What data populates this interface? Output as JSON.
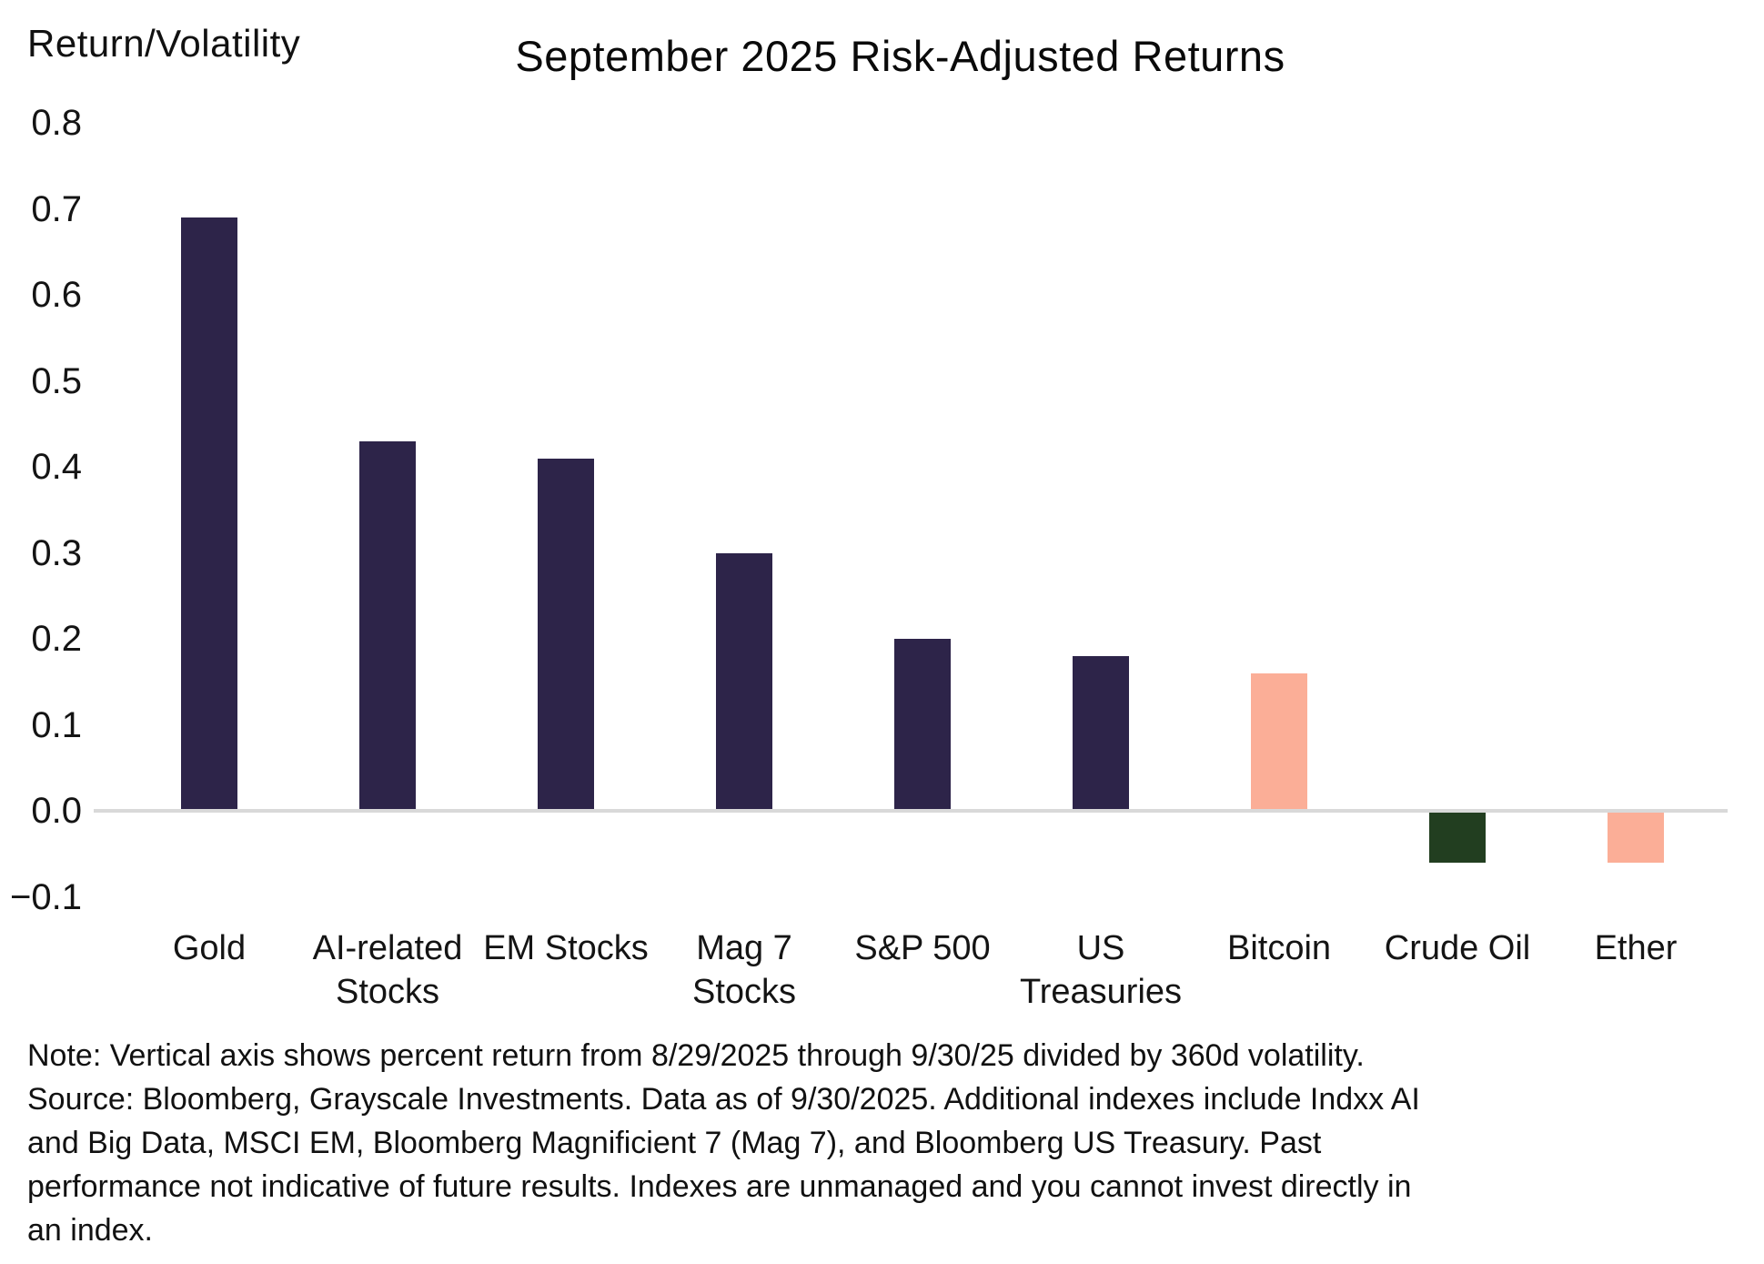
{
  "colors": {
    "bar_purple": "#2D2449",
    "bar_salmon": "#FBAE97",
    "bar_green": "#223E20",
    "axis_gray": "#D9D9D9",
    "background": "#FFFFFF"
  },
  "chart_data": {
    "type": "bar",
    "title": "September 2025 Risk-Adjusted Returns",
    "ylabel": "Return/Volatility",
    "xlabel": "",
    "categories": [
      "Gold",
      "AI-related Stocks",
      "EM Stocks",
      "Mag 7 Stocks",
      "S&P 500",
      "US Treasuries",
      "Bitcoin",
      "Crude Oil",
      "Ether"
    ],
    "category_label_lines": [
      [
        "Gold"
      ],
      [
        "AI-related",
        "Stocks"
      ],
      [
        "EM Stocks"
      ],
      [
        "Mag 7",
        "Stocks"
      ],
      [
        "S&P 500"
      ],
      [
        "US",
        "Treasuries"
      ],
      [
        "Bitcoin"
      ],
      [
        "Crude Oil"
      ],
      [
        "Ether"
      ]
    ],
    "values": [
      0.69,
      0.43,
      0.41,
      0.3,
      0.2,
      0.18,
      0.16,
      -0.06,
      -0.06
    ],
    "bar_color_keys": [
      "bar_purple",
      "bar_purple",
      "bar_purple",
      "bar_purple",
      "bar_purple",
      "bar_purple",
      "bar_salmon",
      "bar_green",
      "bar_salmon"
    ],
    "y_ticks": [
      {
        "label": "0.8",
        "value": 0.8
      },
      {
        "label": "0.7",
        "value": 0.7
      },
      {
        "label": "0.6",
        "value": 0.6
      },
      {
        "label": "0.5",
        "value": 0.5
      },
      {
        "label": "0.4",
        "value": 0.4
      },
      {
        "label": "0.3",
        "value": 0.3
      },
      {
        "label": "0.2",
        "value": 0.2
      },
      {
        "label": "0.1",
        "value": 0.1
      },
      {
        "label": "0.0",
        "value": 0.0
      },
      {
        "label": "−0.1",
        "value": -0.1
      }
    ],
    "ylim": [
      -0.1,
      0.8
    ],
    "grid": false,
    "legend": false,
    "zero_axis_line": true
  },
  "footnote": {
    "lines": [
      "Note: Vertical axis shows percent return from 8/29/2025 through 9/30/25 divided by 360d volatility.",
      "Source: Bloomberg, Grayscale Investments. Data as of 9/30/2025. Additional indexes include Indxx AI",
      "and Big Data, MSCI EM, Bloomberg Magnificient 7 (Mag 7), and Bloomberg US Treasury. Past",
      "performance not indicative of future results. Indexes are unmanaged and you cannot invest directly in",
      "an index."
    ]
  }
}
